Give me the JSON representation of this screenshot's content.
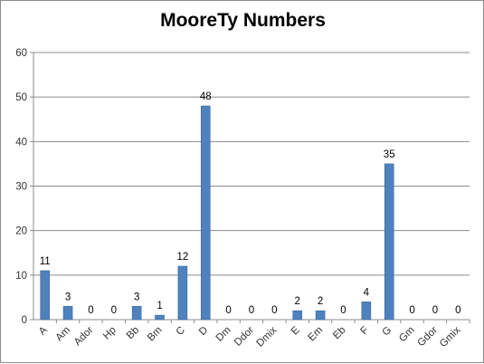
{
  "chart_data": {
    "type": "bar",
    "title": "MooreTy Numbers",
    "xlabel": "",
    "ylabel": "",
    "ylim": [
      0,
      60
    ],
    "yticks": [
      0,
      10,
      20,
      30,
      40,
      50,
      60
    ],
    "grid": true,
    "legend": "none",
    "bar_color": "#4f81bd",
    "categories": [
      "A",
      "Am",
      "Ador",
      "Hp",
      "Bb",
      "Bm",
      "C",
      "D",
      "Dm",
      "Ddor",
      "Dmix",
      "E",
      "Em",
      "Eb",
      "F",
      "G",
      "Gm",
      "Gdor",
      "Gmix"
    ],
    "values": [
      11,
      3,
      0,
      0,
      3,
      1,
      12,
      48,
      0,
      0,
      0,
      2,
      2,
      0,
      4,
      35,
      0,
      0,
      0
    ],
    "data_labels": [
      "11",
      "3",
      "0",
      "0",
      "3",
      "1",
      "12",
      "48",
      "0",
      "0",
      "0",
      "2",
      "2",
      "0",
      "4",
      "35",
      "0",
      "0",
      "0"
    ]
  }
}
